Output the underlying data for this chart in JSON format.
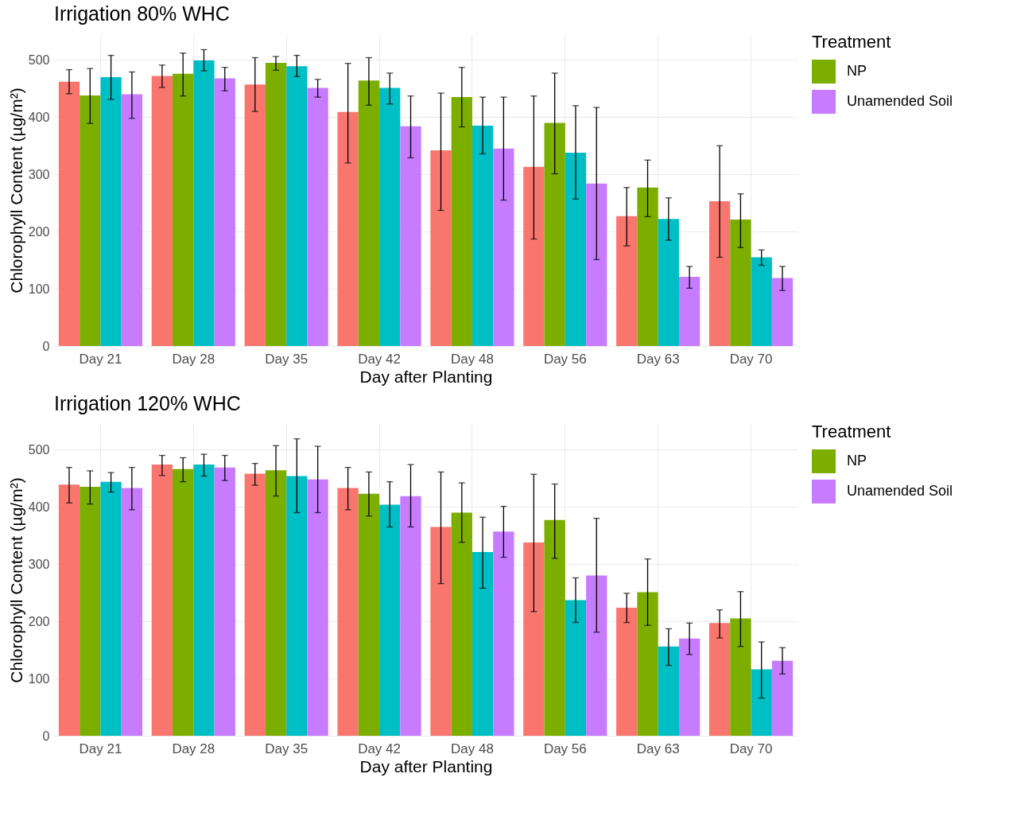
{
  "chart_data": [
    {
      "type": "bar",
      "title": "Irrigation 80% WHC",
      "xlabel": "Day after Planting",
      "ylabel": "Chlorophyll Content (µg/m²)",
      "legend_title": "Treatment",
      "legend": "right",
      "grid": true,
      "categories": [
        "Day 21",
        "Day 28",
        "Day 35",
        "Day 42",
        "Day 48",
        "Day 56",
        "Day 63",
        "Day 70"
      ],
      "ylim": [
        0,
        545
      ],
      "yticks": [
        0,
        100,
        200,
        300,
        400,
        500
      ],
      "series": [
        {
          "color": "#f8766d",
          "values": [
            462,
            472,
            457,
            409,
            342,
            313,
            227,
            253
          ],
          "errors": [
            [
              441,
              483
            ],
            [
              452,
              491
            ],
            [
              410,
              504
            ],
            [
              320,
              494
            ],
            [
              237,
              442
            ],
            [
              187,
              437
            ],
            [
              175,
              277
            ],
            [
              155,
              350
            ]
          ]
        },
        {
          "name": "NP",
          "color": "#7cae00",
          "values": [
            438,
            476,
            495,
            464,
            435,
            390,
            277,
            221
          ],
          "errors": [
            [
              389,
              485
            ],
            [
              437,
              512
            ],
            [
              482,
              506
            ],
            [
              421,
              504
            ],
            [
              383,
              487
            ],
            [
              301,
              477
            ],
            [
              226,
              325
            ],
            [
              172,
              266
            ]
          ]
        },
        {
          "color": "#00bfc4",
          "values": [
            470,
            499,
            489,
            451,
            385,
            338,
            222,
            155
          ],
          "errors": [
            [
              431,
              508
            ],
            [
              481,
              518
            ],
            [
              471,
              508
            ],
            [
              423,
              477
            ],
            [
              336,
              435
            ],
            [
              257,
              420
            ],
            [
              185,
              259
            ],
            [
              141,
              168
            ]
          ]
        },
        {
          "name": "Unamended Soil",
          "color": "#c77cff",
          "values": [
            440,
            468,
            451,
            384,
            345,
            284,
            121,
            119
          ],
          "errors": [
            [
              398,
              479
            ],
            [
              446,
              487
            ],
            [
              435,
              466
            ],
            [
              329,
              437
            ],
            [
              255,
              435
            ],
            [
              151,
              417
            ],
            [
              101,
              139
            ],
            [
              97,
              139
            ]
          ]
        }
      ]
    },
    {
      "type": "bar",
      "title": "Irrigation 120% WHC",
      "xlabel": "Day after Planting",
      "ylabel": "Chlorophyll Content (µg/m²)",
      "legend_title": "Treatment",
      "legend": "right",
      "grid": true,
      "categories": [
        "Day 21",
        "Day 28",
        "Day 35",
        "Day 42",
        "Day 48",
        "Day 56",
        "Day 63",
        "Day 70"
      ],
      "ylim": [
        0,
        545
      ],
      "yticks": [
        0,
        100,
        200,
        300,
        400,
        500
      ],
      "series": [
        {
          "color": "#f8766d",
          "values": [
            439,
            474,
            458,
            433,
            365,
            338,
            224,
            197
          ],
          "errors": [
            [
              407,
              469
            ],
            [
              455,
              490
            ],
            [
              438,
              476
            ],
            [
              395,
              469
            ],
            [
              266,
              461
            ],
            [
              217,
              457
            ],
            [
              198,
              249
            ],
            [
              171,
              220
            ]
          ]
        },
        {
          "name": "NP",
          "color": "#7cae00",
          "values": [
            435,
            466,
            464,
            423,
            390,
            377,
            251,
            205
          ],
          "errors": [
            [
              405,
              463
            ],
            [
              444,
              486
            ],
            [
              419,
              507
            ],
            [
              384,
              461
            ],
            [
              338,
              442
            ],
            [
              310,
              440
            ],
            [
              193,
              309
            ],
            [
              156,
              252
            ]
          ]
        },
        {
          "color": "#00bfc4",
          "values": [
            444,
            474,
            454,
            404,
            321,
            237,
            156,
            116
          ],
          "errors": [
            [
              426,
              460
            ],
            [
              454,
              492
            ],
            [
              390,
              519
            ],
            [
              365,
              444
            ],
            [
              258,
              382
            ],
            [
              198,
              276
            ],
            [
              123,
              187
            ],
            [
              66,
              164
            ]
          ]
        },
        {
          "name": "Unamended Soil",
          "color": "#c77cff",
          "values": [
            433,
            469,
            448,
            419,
            357,
            280,
            170,
            131
          ],
          "errors": [
            [
              395,
              469
            ],
            [
              446,
              490
            ],
            [
              390,
              506
            ],
            [
              365,
              474
            ],
            [
              312,
              401
            ],
            [
              181,
              380
            ],
            [
              142,
              197
            ],
            [
              108,
              154
            ]
          ]
        }
      ]
    }
  ]
}
